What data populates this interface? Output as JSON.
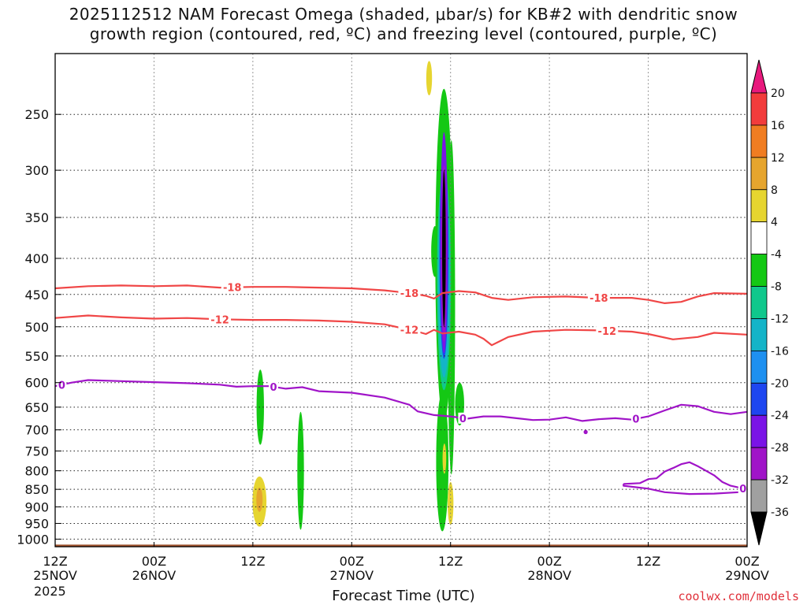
{
  "title_line1": "2025112512 NAM Forecast Omega (shaded, μbar/s) for KB#2 with dendritic snow",
  "title_line2": "growth region (contoured, red, ºC) and freezing level (contoured, purple, ºC)",
  "year": "2025",
  "credit": "coolwx.com/models",
  "chart_data": {
    "type": "heatmap",
    "xlabel": "Forecast Time (UTC)",
    "ylabel": "",
    "x_ticks": [
      {
        "hour": 0,
        "line1": "12Z",
        "line2": "25NOV"
      },
      {
        "hour": 12,
        "line1": "00Z",
        "line2": "26NOV"
      },
      {
        "hour": 24,
        "line1": "12Z",
        "line2": ""
      },
      {
        "hour": 36,
        "line1": "00Z",
        "line2": "27NOV"
      },
      {
        "hour": 48,
        "line1": "12Z",
        "line2": ""
      },
      {
        "hour": 60,
        "line1": "00Z",
        "line2": "28NOV"
      },
      {
        "hour": 72,
        "line1": "12Z",
        "line2": ""
      },
      {
        "hour": 84,
        "line1": "00Z",
        "line2": "29NOV"
      }
    ],
    "y_ticks": [
      250,
      300,
      350,
      400,
      450,
      500,
      550,
      600,
      650,
      700,
      750,
      800,
      850,
      900,
      950,
      1000
    ],
    "ylim": [
      1025,
      205
    ],
    "log_y": true,
    "grid": true,
    "colorbar": [
      {
        "label": "20",
        "color": "#e8197d"
      },
      {
        "label": "16",
        "color": "#f23c3c"
      },
      {
        "label": "12",
        "color": "#f07d22"
      },
      {
        "label": "8",
        "color": "#e6a52e"
      },
      {
        "label": "4",
        "color": "#e6d530"
      },
      {
        "label": "-4",
        "color": "#ffffff"
      },
      {
        "label": "-8",
        "color": "#14c814"
      },
      {
        "label": "-12",
        "color": "#10c88c"
      },
      {
        "label": "-16",
        "color": "#14b4c8"
      },
      {
        "label": "-20",
        "color": "#1e90f0"
      },
      {
        "label": "-24",
        "color": "#1e46f0"
      },
      {
        "label": "-28",
        "color": "#7a14e6"
      },
      {
        "label": "-32",
        "color": "#a014c8"
      },
      {
        "label": "-36",
        "color": "#a0a0a0"
      },
      {
        "label": "",
        "color": "#000000"
      }
    ],
    "series": [
      {
        "name": "-18",
        "color": "#f04646",
        "points": [
          [
            0,
            441
          ],
          [
            4,
            438
          ],
          [
            8,
            437
          ],
          [
            12,
            438
          ],
          [
            16,
            437
          ],
          [
            20,
            440
          ],
          [
            24,
            439
          ],
          [
            28,
            439
          ],
          [
            32,
            440
          ],
          [
            36,
            441
          ],
          [
            40,
            444
          ],
          [
            43,
            448
          ],
          [
            45,
            452
          ],
          [
            46,
            456
          ],
          [
            47,
            448
          ],
          [
            49,
            445
          ],
          [
            51,
            447
          ],
          [
            53,
            455
          ],
          [
            55,
            458
          ],
          [
            58,
            454
          ],
          [
            62,
            453
          ],
          [
            66,
            455
          ],
          [
            70,
            455
          ],
          [
            72,
            458
          ],
          [
            74,
            463
          ],
          [
            76,
            461
          ],
          [
            78,
            453
          ],
          [
            80,
            448
          ],
          [
            84,
            449
          ]
        ]
      },
      {
        "name": "-12",
        "color": "#f04646",
        "points": [
          [
            0,
            486
          ],
          [
            4,
            482
          ],
          [
            8,
            485
          ],
          [
            12,
            487
          ],
          [
            16,
            486
          ],
          [
            20,
            488
          ],
          [
            24,
            489
          ],
          [
            28,
            489
          ],
          [
            32,
            490
          ],
          [
            36,
            492
          ],
          [
            40,
            496
          ],
          [
            42,
            502
          ],
          [
            44,
            508
          ],
          [
            45,
            512
          ],
          [
            46,
            505
          ],
          [
            47,
            511
          ],
          [
            49,
            508
          ],
          [
            51,
            513
          ],
          [
            52,
            520
          ],
          [
            53,
            531
          ],
          [
            55,
            517
          ],
          [
            58,
            508
          ],
          [
            62,
            505
          ],
          [
            66,
            506
          ],
          [
            70,
            508
          ],
          [
            72,
            512
          ],
          [
            75,
            521
          ],
          [
            78,
            517
          ],
          [
            80,
            510
          ],
          [
            84,
            513
          ]
        ]
      },
      {
        "name": "0",
        "color": "#a014c8",
        "points": [
          [
            0,
            607
          ],
          [
            2,
            600
          ],
          [
            4,
            595
          ],
          [
            8,
            597
          ],
          [
            12,
            599
          ],
          [
            16,
            601
          ],
          [
            20,
            604
          ],
          [
            22,
            608
          ],
          [
            24,
            607
          ],
          [
            26,
            607
          ],
          [
            28,
            612
          ],
          [
            30,
            609
          ],
          [
            32,
            617
          ],
          [
            36,
            620
          ],
          [
            40,
            630
          ],
          [
            43,
            645
          ],
          [
            44,
            659
          ],
          [
            46,
            667
          ],
          [
            48,
            670
          ],
          [
            50,
            675
          ],
          [
            52,
            670
          ],
          [
            54,
            670
          ],
          [
            56,
            674
          ],
          [
            58,
            678
          ],
          [
            60,
            677
          ],
          [
            62,
            672
          ],
          [
            64,
            680
          ],
          [
            66,
            676
          ],
          [
            68,
            674
          ],
          [
            70,
            677
          ],
          [
            72,
            670
          ],
          [
            74,
            657
          ],
          [
            76,
            645
          ],
          [
            78,
            648
          ],
          [
            80,
            660
          ],
          [
            82,
            665
          ],
          [
            84,
            660
          ]
        ]
      },
      {
        "name": "0",
        "color": "#a014c8",
        "points": [
          [
            69,
            835
          ],
          [
            71,
            833
          ],
          [
            72,
            822
          ],
          [
            73,
            820
          ],
          [
            74,
            802
          ],
          [
            75,
            793
          ],
          [
            76,
            783
          ],
          [
            77,
            778
          ],
          [
            78,
            788
          ],
          [
            80,
            812
          ],
          [
            81,
            830
          ],
          [
            82,
            840
          ],
          [
            84,
            850
          ],
          [
            83,
            858
          ],
          [
            80,
            862
          ],
          [
            77,
            863
          ],
          [
            74,
            858
          ],
          [
            72,
            848
          ],
          [
            69,
            840
          ],
          [
            69,
            835
          ]
        ]
      }
    ],
    "series_labels": [
      {
        "text": "-18",
        "series": 0,
        "hour": 21.5,
        "color": "#f04646"
      },
      {
        "text": "-18",
        "series": 0,
        "hour": 43,
        "color": "#f04646"
      },
      {
        "text": "-18",
        "series": 0,
        "hour": 66,
        "color": "#f04646"
      },
      {
        "text": "-12",
        "series": 1,
        "hour": 20,
        "color": "#f04646"
      },
      {
        "text": "-12",
        "series": 1,
        "hour": 43,
        "color": "#f04646"
      },
      {
        "text": "-12",
        "series": 1,
        "hour": 67,
        "color": "#f04646"
      },
      {
        "text": "0",
        "series": 2,
        "hour": 0.8,
        "color": "#a014c8"
      },
      {
        "text": "0",
        "series": 2,
        "hour": 26.5,
        "color": "#a014c8"
      },
      {
        "text": "0",
        "series": 2,
        "hour": 49.5,
        "color": "#a014c8"
      },
      {
        "text": "0",
        "series": 2,
        "hour": 70.5,
        "color": "#a014c8"
      },
      {
        "text": "0",
        "series": 3,
        "hour": 83.5,
        "color": "#a014c8"
      }
    ],
    "terrain_color": "#a0522d",
    "terrain_top": 1018,
    "omega_features": [
      {
        "hour": 45.4,
        "p_top": 210,
        "p_bot": 235,
        "dx": 0.35,
        "color": "#e6d530"
      },
      {
        "hour": 46.1,
        "p_top": 360,
        "p_bot": 425,
        "dx": 0.45,
        "color": "#14c814"
      },
      {
        "hour": 47.0,
        "p_top": 620,
        "p_bot": 975,
        "dx": 0.75,
        "color": "#14c814"
      },
      {
        "hour": 48.1,
        "p_top": 272,
        "p_bot": 810,
        "dx": 0.45,
        "color": "#14c814"
      },
      {
        "hour": 49.1,
        "p_top": 600,
        "p_bot": 690,
        "dx": 0.55,
        "color": "#14c814"
      },
      {
        "hour": 47.2,
        "p_top": 230,
        "p_bot": 680,
        "dx": 1.05,
        "color": "#14c814"
      },
      {
        "hour": 47.2,
        "p_top": 300,
        "p_bot": 615,
        "dx": 0.85,
        "color": "#10c88c"
      },
      {
        "hour": 47.2,
        "p_top": 320,
        "p_bot": 590,
        "dx": 0.7,
        "color": "#14b4c8"
      },
      {
        "hour": 47.2,
        "p_top": 280,
        "p_bot": 555,
        "dx": 0.55,
        "color": "#1e46f0"
      },
      {
        "hour": 47.2,
        "p_top": 265,
        "p_bot": 545,
        "dx": 0.45,
        "color": "#7a14e6"
      },
      {
        "hour": 47.2,
        "p_top": 295,
        "p_bot": 525,
        "dx": 0.32,
        "color": "#a014c8"
      },
      {
        "hour": 47.2,
        "p_top": 300,
        "p_bot": 500,
        "dx": 0.22,
        "color": "#000000"
      },
      {
        "hour": 47.25,
        "p_top": 732,
        "p_bot": 808,
        "dx": 0.22,
        "color": "#e6d530"
      },
      {
        "hour": 48.0,
        "p_top": 830,
        "p_bot": 955,
        "dx": 0.35,
        "color": "#e6d530"
      },
      {
        "hour": 24.9,
        "p_top": 575,
        "p_bot": 735,
        "dx": 0.45,
        "color": "#14c814"
      },
      {
        "hour": 29.8,
        "p_top": 660,
        "p_bot": 970,
        "dx": 0.4,
        "color": "#14c814"
      },
      {
        "hour": 24.8,
        "p_top": 815,
        "p_bot": 960,
        "dx": 0.85,
        "color": "#e6d530"
      },
      {
        "hour": 24.8,
        "p_top": 845,
        "p_bot": 915,
        "dx": 0.38,
        "color": "#e6a52e"
      },
      {
        "hour": 64.4,
        "p_top": 700,
        "p_bot": 710,
        "dx": 0.25,
        "color": "#a014c8"
      }
    ]
  }
}
